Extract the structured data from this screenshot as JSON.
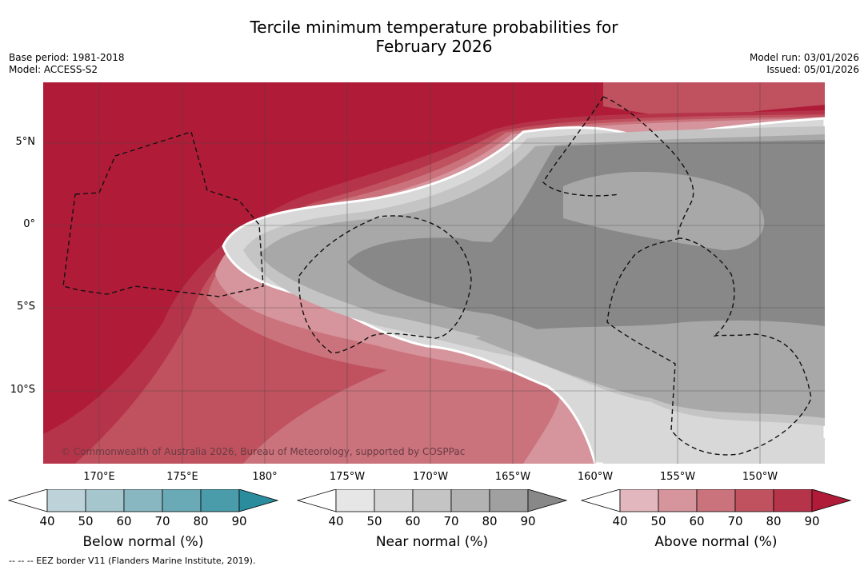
{
  "title_line1": "Tercile minimum temperature probabilities for",
  "title_line2": "February 2026",
  "base_period": "Base period: 1981-2018",
  "model": "Model: ACCESS-S2",
  "model_run": "Model run: 03/01/2026",
  "issued": "Issued: 05/01/2026",
  "lat_labels": [
    "5°N",
    "0°",
    "5°S",
    "10°S"
  ],
  "lon_labels": [
    "170°E",
    "175°E",
    "180°",
    "175°W",
    "170°W",
    "165°W",
    "160°W",
    "155°W",
    "150°W"
  ],
  "copyright": "© Commonwealth of Australia 2026, Bureau of Meteorology, supported by COSPPac",
  "colorbars": {
    "below": {
      "label": "Below normal (%)",
      "ticks": [
        "40",
        "50",
        "60",
        "70",
        "80",
        "90"
      ],
      "colors": [
        "#ffffff",
        "#bdd3d9",
        "#a5c6cd",
        "#89b7c1",
        "#6aa9b6",
        "#4a9caa",
        "#2b8c9d"
      ]
    },
    "near": {
      "label": "Near normal (%)",
      "ticks": [
        "40",
        "50",
        "60",
        "70",
        "80",
        "90"
      ],
      "colors": [
        "#ffffff",
        "#e6e6e6",
        "#d6d6d6",
        "#c4c4c4",
        "#b2b2b2",
        "#a0a0a0",
        "#888888"
      ]
    },
    "above": {
      "label": "Above normal (%)",
      "ticks": [
        "40",
        "50",
        "60",
        "70",
        "80",
        "90"
      ],
      "colors": [
        "#ffffff",
        "#e2b7bd",
        "#d6949c",
        "#ca737c",
        "#bf525e",
        "#b63449",
        "#b01c38"
      ]
    }
  },
  "footnote": "--  --  -- EEZ border V11 (Flanders Marine Institute, 2019)."
}
